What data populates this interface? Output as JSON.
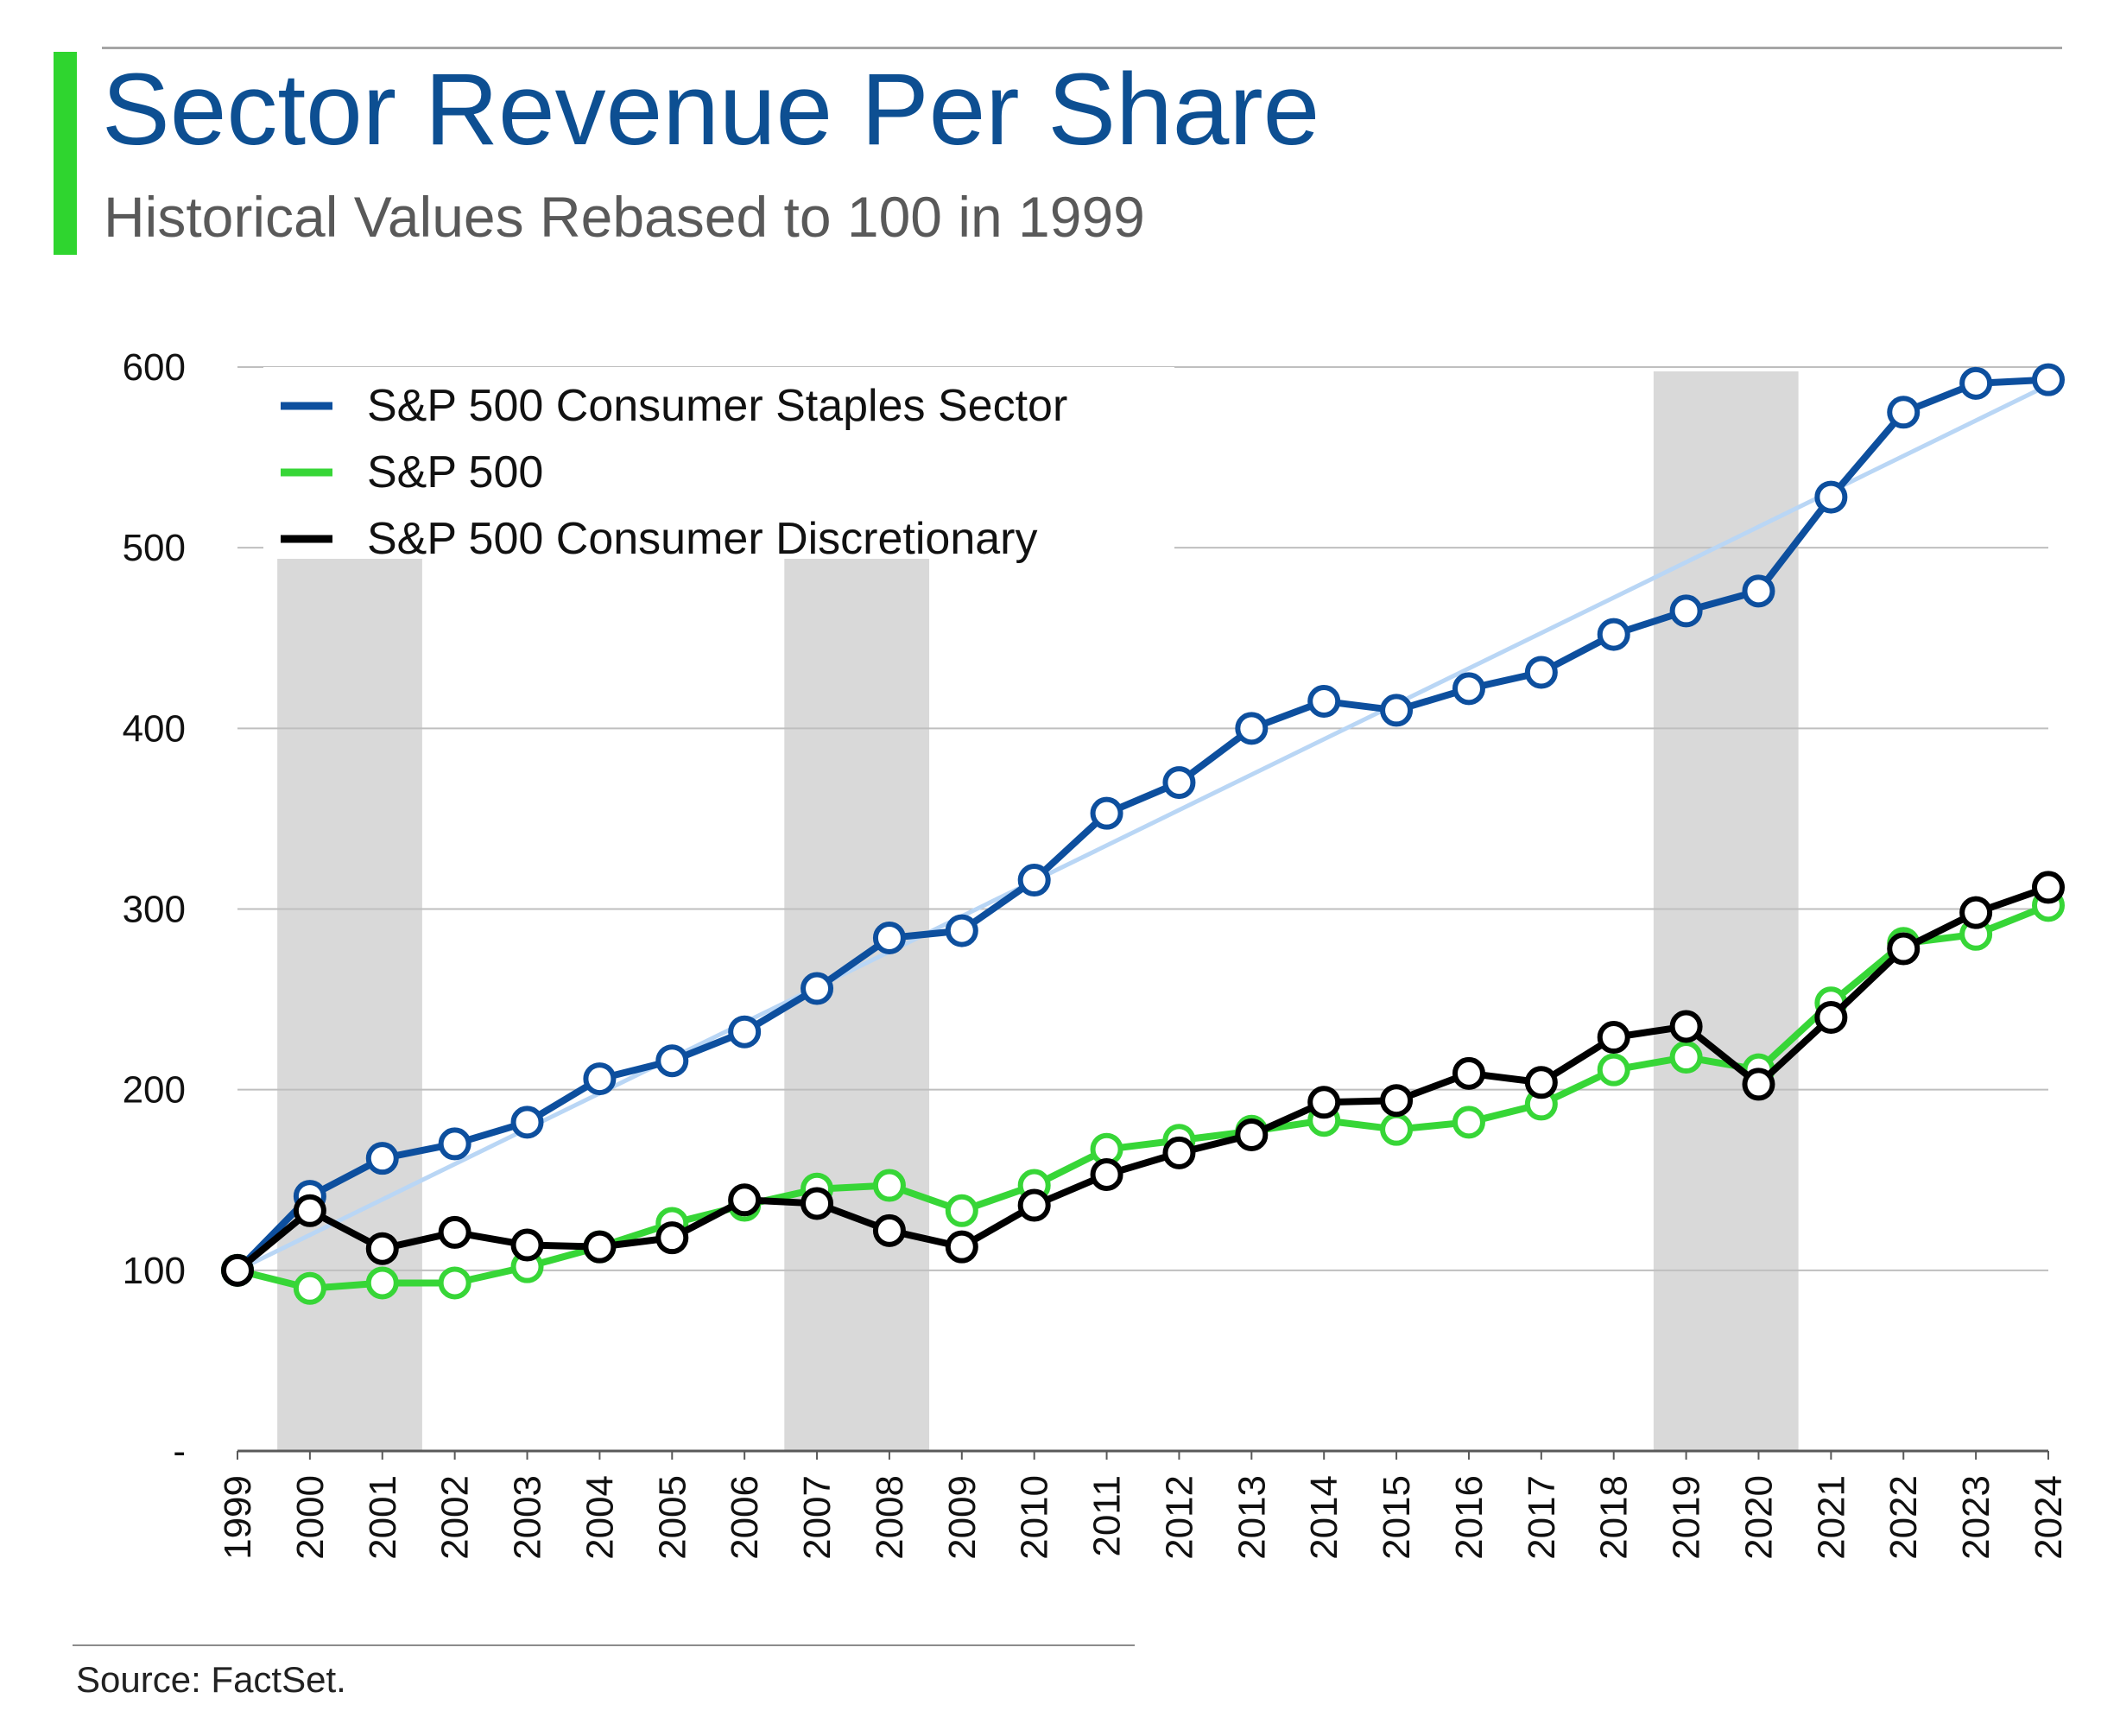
{
  "header": {
    "title": "Sector Revenue Per Share",
    "subtitle": "Historical Values Rebased to 100 in 1999"
  },
  "footer": {
    "source": "Source: FactSet."
  },
  "colors": {
    "staples": "#0d4f9e",
    "sp500": "#37d637",
    "discretionary": "#000000",
    "trend": "#b9d6f5",
    "recession": "#d9d9d9",
    "gridline": "#bfbfbf",
    "axis": "#595959",
    "title": "#0d4f92",
    "accent": "#2fd52f"
  },
  "chart_data": {
    "type": "line",
    "title": "Sector Revenue Per Share",
    "subtitle": "Historical Values Rebased to 100 in 1999",
    "x": [
      "1999",
      "2000",
      "2001",
      "2002",
      "2003",
      "2004",
      "2005",
      "2006",
      "2007",
      "2008",
      "2009",
      "2010",
      "2011",
      "2012",
      "2013",
      "2014",
      "2015",
      "2016",
      "2017",
      "2018",
      "2019",
      "2020",
      "2021",
      "2022",
      "2023",
      "2024"
    ],
    "y_ticks": [
      0,
      100,
      200,
      300,
      400,
      500,
      600
    ],
    "y_tick_labels": [
      "-",
      "100",
      "200",
      "300",
      "400",
      "500",
      "600"
    ],
    "ylim": [
      0,
      600
    ],
    "grid": true,
    "legend_position": "top-left",
    "shaded_periods": [
      [
        "2000",
        "2001"
      ],
      [
        "2007",
        "2008"
      ],
      [
        "2019",
        "2020"
      ]
    ],
    "trendline": {
      "series": "S&P 500 Consumer Staples Sector",
      "from": [
        "1999",
        100
      ],
      "to": [
        "2024",
        590
      ]
    },
    "series": [
      {
        "name": "S&P 500 Consumer Staples Sector",
        "color_key": "staples",
        "values": [
          100,
          141,
          162,
          170,
          182,
          206,
          216,
          232,
          256,
          284,
          288,
          316,
          353,
          370,
          400,
          415,
          410,
          422,
          431,
          452,
          465,
          476,
          528,
          575,
          591,
          593
        ]
      },
      {
        "name": "S&P 500",
        "color_key": "sp500",
        "values": [
          100,
          90,
          93,
          93,
          102,
          113,
          126,
          136,
          145,
          147,
          133,
          147,
          167,
          172,
          177,
          183,
          178,
          182,
          192,
          211,
          218,
          211,
          248,
          281,
          286,
          302
        ]
      },
      {
        "name": "S&P 500 Consumer Discretionary",
        "color_key": "discretionary",
        "values": [
          100,
          133,
          112,
          121,
          114,
          113,
          118,
          139,
          137,
          122,
          113,
          136,
          153,
          165,
          175,
          193,
          194,
          209,
          204,
          229,
          235,
          203,
          240,
          278,
          298,
          312
        ]
      }
    ]
  }
}
